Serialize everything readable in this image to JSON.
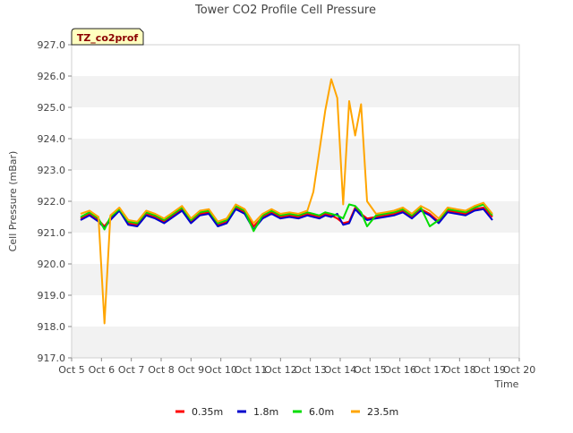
{
  "chart_data": {
    "type": "line",
    "title": "Tower CO2 Profile Cell Pressure",
    "badge": "TZ_co2prof",
    "xlabel": "Time",
    "ylabel": "Cell Pressure (mBar)",
    "xlim": [
      5,
      20
    ],
    "ylim": [
      917.0,
      927.0
    ],
    "xticks": [
      5,
      6,
      7,
      8,
      9,
      10,
      11,
      12,
      13,
      14,
      15,
      16,
      17,
      18,
      19,
      20
    ],
    "xtick_labels": [
      "Oct 5",
      "Oct 6",
      "Oct 7",
      "Oct 8",
      "Oct 9",
      "Oct 10",
      "Oct 11",
      "Oct 12",
      "Oct 13",
      "Oct 14",
      "Oct 15",
      "Oct 16",
      "Oct 17",
      "Oct 18",
      "Oct 19",
      "Oct 20"
    ],
    "yticks": [
      917.0,
      918.0,
      919.0,
      920.0,
      921.0,
      922.0,
      923.0,
      924.0,
      925.0,
      926.0,
      927.0
    ],
    "ytick_labels": [
      "917.0",
      "918.0",
      "919.0",
      "920.0",
      "921.0",
      "922.0",
      "923.0",
      "924.0",
      "925.0",
      "926.0",
      "927.0"
    ],
    "grid": "horizontal bands",
    "legend_position": "bottom",
    "x": [
      5.3,
      5.6,
      5.9,
      6.1,
      6.3,
      6.6,
      6.9,
      7.2,
      7.5,
      7.8,
      8.1,
      8.4,
      8.7,
      9.0,
      9.3,
      9.6,
      9.9,
      10.2,
      10.5,
      10.8,
      11.1,
      11.4,
      11.7,
      12.0,
      12.3,
      12.6,
      12.9,
      13.1,
      13.3,
      13.5,
      13.7,
      13.9,
      14.1,
      14.3,
      14.5,
      14.7,
      14.9,
      15.2,
      15.5,
      15.8,
      16.1,
      16.4,
      16.7,
      17.0,
      17.3,
      17.6,
      17.9,
      18.2,
      18.5,
      18.8,
      19.1
    ],
    "series": [
      {
        "name": "0.35m",
        "color": "#ff0000",
        "values": [
          921.45,
          921.6,
          921.4,
          921.2,
          921.45,
          921.75,
          921.3,
          921.25,
          921.6,
          921.5,
          921.35,
          921.55,
          921.75,
          921.35,
          921.6,
          921.65,
          921.25,
          921.35,
          921.8,
          921.65,
          921.2,
          921.5,
          921.65,
          921.5,
          921.55,
          921.5,
          921.6,
          921.55,
          921.5,
          921.6,
          921.55,
          921.45,
          921.3,
          921.35,
          921.8,
          921.6,
          921.45,
          921.5,
          921.55,
          921.6,
          921.7,
          921.5,
          921.75,
          921.6,
          921.35,
          921.7,
          921.65,
          921.6,
          921.75,
          921.8,
          921.5
        ]
      },
      {
        "name": "1.8m",
        "color": "#0000cc",
        "values": [
          921.4,
          921.55,
          921.35,
          921.15,
          921.4,
          921.7,
          921.25,
          921.2,
          921.55,
          921.45,
          921.3,
          921.5,
          921.7,
          921.3,
          921.55,
          921.6,
          921.2,
          921.3,
          921.75,
          921.6,
          921.1,
          921.45,
          921.6,
          921.45,
          921.5,
          921.45,
          921.55,
          921.5,
          921.45,
          921.55,
          921.5,
          921.6,
          921.25,
          921.3,
          921.75,
          921.55,
          921.4,
          921.45,
          921.5,
          921.55,
          921.65,
          921.45,
          921.7,
          921.55,
          921.3,
          921.65,
          921.6,
          921.55,
          921.7,
          921.75,
          921.4
        ]
      },
      {
        "name": "6.0m",
        "color": "#00dd00",
        "values": [
          921.5,
          921.65,
          921.45,
          921.1,
          921.5,
          921.75,
          921.35,
          921.3,
          921.65,
          921.55,
          921.4,
          921.6,
          921.8,
          921.4,
          921.65,
          921.7,
          921.3,
          921.4,
          921.85,
          921.7,
          921.05,
          921.55,
          921.7,
          921.55,
          921.6,
          921.55,
          921.65,
          921.6,
          921.55,
          921.65,
          921.6,
          921.55,
          921.45,
          921.9,
          921.85,
          921.65,
          921.2,
          921.55,
          921.6,
          921.65,
          921.75,
          921.55,
          921.8,
          921.2,
          921.4,
          921.75,
          921.7,
          921.65,
          921.8,
          921.9,
          921.55
        ]
      },
      {
        "name": "23.5m",
        "color": "#ffa500",
        "values": [
          921.6,
          921.7,
          921.5,
          918.1,
          921.55,
          921.8,
          921.4,
          921.35,
          921.7,
          921.6,
          921.45,
          921.65,
          921.85,
          921.45,
          921.7,
          921.75,
          921.35,
          921.45,
          921.9,
          921.75,
          921.3,
          921.6,
          921.75,
          921.6,
          921.65,
          921.6,
          921.7,
          922.3,
          923.6,
          924.9,
          925.9,
          925.3,
          921.9,
          925.2,
          924.1,
          925.1,
          922.0,
          921.6,
          921.65,
          921.7,
          921.8,
          921.6,
          921.85,
          921.7,
          921.45,
          921.8,
          921.75,
          921.7,
          921.85,
          921.95,
          921.6
        ]
      }
    ]
  }
}
